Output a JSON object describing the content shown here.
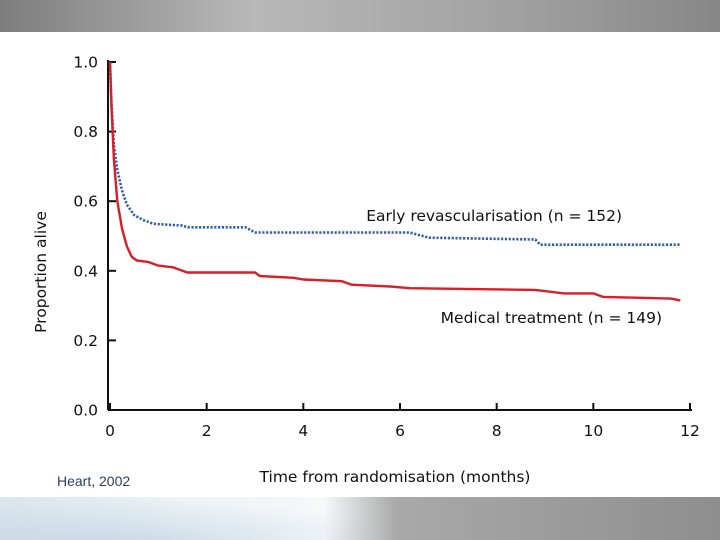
{
  "chart_data": {
    "type": "line",
    "ylabel": "Proportion alive",
    "xlabel": "Time from randomisation (months)",
    "xlim": [
      0,
      12
    ],
    "ylim": [
      0,
      1
    ],
    "x_ticks": [
      "0",
      "2",
      "4",
      "6",
      "8",
      "10",
      "12"
    ],
    "y_ticks": [
      "0.0",
      "0.2",
      "0.4",
      "0.6",
      "0.8",
      "1.0"
    ],
    "series": [
      {
        "name": "Early revascularisation (n = 152)",
        "color": "#2f5fa7",
        "style": "dotted",
        "points": [
          [
            0,
            1.0
          ],
          [
            0.03,
            0.88
          ],
          [
            0.08,
            0.76
          ],
          [
            0.15,
            0.69
          ],
          [
            0.25,
            0.63
          ],
          [
            0.35,
            0.59
          ],
          [
            0.5,
            0.56
          ],
          [
            0.7,
            0.545
          ],
          [
            0.9,
            0.535
          ],
          [
            1.5,
            0.53
          ],
          [
            1.6,
            0.525
          ],
          [
            2.8,
            0.525
          ],
          [
            3.0,
            0.51
          ],
          [
            6.2,
            0.51
          ],
          [
            6.6,
            0.495
          ],
          [
            8.8,
            0.49
          ],
          [
            8.9,
            0.475
          ],
          [
            11.8,
            0.475
          ]
        ]
      },
      {
        "name": "Medical treatment (n = 149)",
        "color": "#d81e28",
        "style": "solid",
        "points": [
          [
            0,
            1.0
          ],
          [
            0.03,
            0.87
          ],
          [
            0.08,
            0.72
          ],
          [
            0.15,
            0.6
          ],
          [
            0.25,
            0.52
          ],
          [
            0.35,
            0.47
          ],
          [
            0.45,
            0.44
          ],
          [
            0.55,
            0.43
          ],
          [
            0.8,
            0.425
          ],
          [
            1.0,
            0.415
          ],
          [
            1.3,
            0.41
          ],
          [
            1.6,
            0.395
          ],
          [
            3.0,
            0.395
          ],
          [
            3.1,
            0.385
          ],
          [
            3.8,
            0.38
          ],
          [
            4.0,
            0.375
          ],
          [
            4.8,
            0.37
          ],
          [
            5.0,
            0.36
          ],
          [
            5.8,
            0.355
          ],
          [
            6.2,
            0.35
          ],
          [
            8.8,
            0.345
          ],
          [
            9.4,
            0.335
          ],
          [
            10.0,
            0.335
          ],
          [
            10.2,
            0.325
          ],
          [
            11.6,
            0.32
          ],
          [
            11.8,
            0.315
          ]
        ]
      }
    ],
    "annotations": [
      {
        "text": "Early revascularisation (n = 152)",
        "series": 0
      },
      {
        "text": "Medical treatment (n = 149)",
        "series": 1
      }
    ]
  },
  "source": "Heart, 2002"
}
